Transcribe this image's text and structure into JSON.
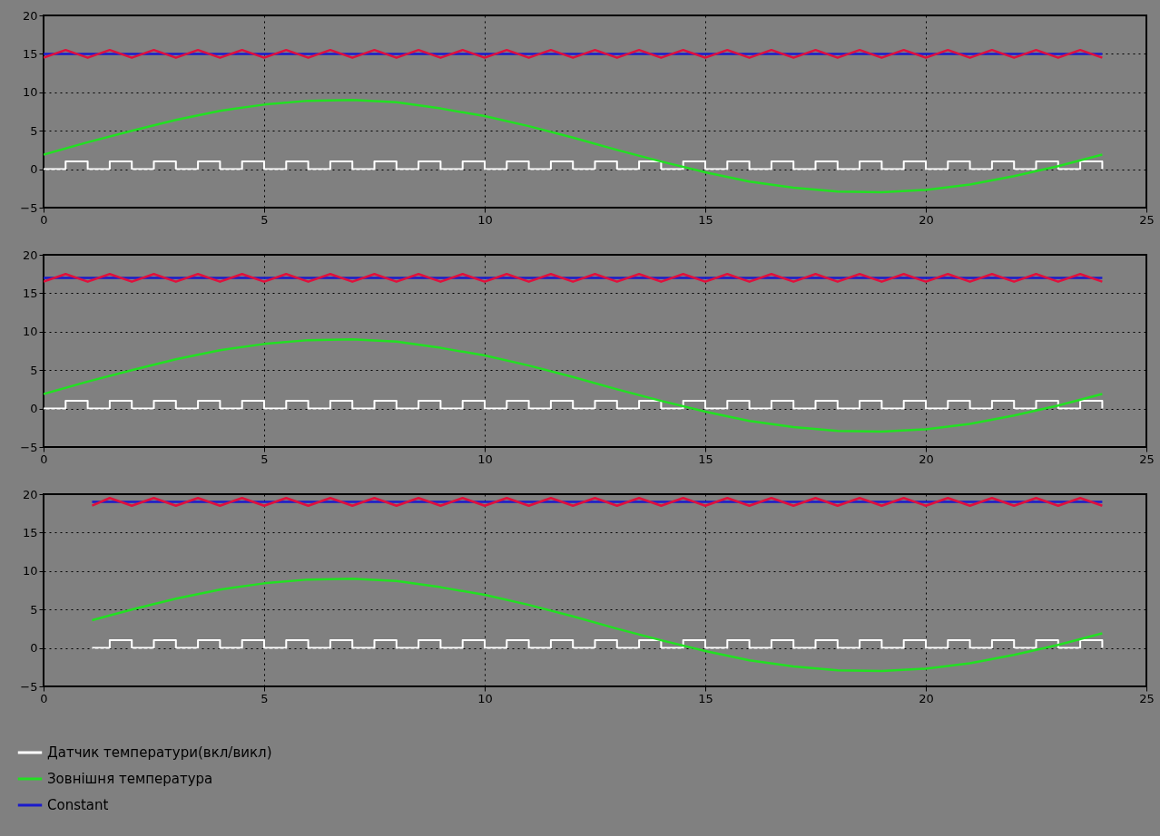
{
  "chart_data": [
    {
      "type": "line",
      "xlim": [
        0,
        25
      ],
      "ylim": [
        -5,
        20
      ],
      "xticks": [
        0,
        5,
        10,
        15,
        20,
        25
      ],
      "yticks": [
        -5,
        0,
        5,
        10,
        15,
        20
      ],
      "grid": true,
      "series": [
        {
          "color": "#ffffff",
          "type": "step",
          "x": [
            0,
            0.5,
            1,
            1.5,
            2,
            2.5,
            3,
            3.5,
            4,
            4.5,
            5,
            5.5,
            6,
            6.5,
            7,
            7.5,
            8,
            8.5,
            9,
            9.5,
            10,
            10.5,
            11,
            11.5,
            12,
            12.5,
            13,
            13.5,
            14,
            14.5,
            15,
            15.5,
            16,
            16.5,
            17,
            17.5,
            18,
            18.5,
            19,
            19.5,
            20,
            20.5,
            21,
            21.5,
            22,
            22.5,
            23,
            23.5,
            24
          ],
          "values": [
            0,
            1,
            0,
            1,
            0,
            1,
            0,
            1,
            0,
            1,
            0,
            1,
            0,
            1,
            0,
            1,
            0,
            1,
            0,
            1,
            0,
            1,
            0,
            1,
            0,
            1,
            0,
            1,
            0,
            1,
            0,
            1,
            0,
            1,
            0,
            1,
            0,
            1,
            0,
            1,
            0,
            1,
            0,
            1,
            0,
            1,
            0,
            1,
            0
          ]
        },
        {
          "color": "#22e022",
          "x": [
            0,
            1,
            2,
            3,
            4,
            5,
            6,
            7,
            8,
            9,
            10,
            11,
            12,
            13,
            14,
            15,
            16,
            17,
            18,
            19,
            20,
            21,
            22,
            23,
            24
          ],
          "values": [
            1.9,
            3.5,
            5.0,
            6.4,
            7.6,
            8.4,
            8.9,
            9.0,
            8.7,
            7.9,
            6.9,
            5.6,
            4.1,
            2.5,
            1.0,
            -0.4,
            -1.6,
            -2.4,
            -2.9,
            -3.0,
            -2.7,
            -2.0,
            -0.9,
            0.4,
            1.9
          ]
        },
        {
          "color": "#1a1acc",
          "x": [
            0,
            24
          ],
          "values": [
            15,
            15
          ]
        },
        {
          "color": "#e0103c",
          "x": [
            0,
            0.5,
            1,
            1.5,
            2,
            2.5,
            3,
            3.5,
            4,
            4.5,
            5,
            5.5,
            6,
            6.5,
            7,
            7.5,
            8,
            8.5,
            9,
            9.5,
            10,
            10.5,
            11,
            11.5,
            12,
            12.5,
            13,
            13.5,
            14,
            14.5,
            15,
            15.5,
            16,
            16.5,
            17,
            17.5,
            18,
            18.5,
            19,
            19.5,
            20,
            20.5,
            21,
            21.5,
            22,
            22.5,
            23,
            23.5,
            24
          ],
          "values": [
            14.5,
            15.5,
            14.5,
            15.5,
            14.5,
            15.5,
            14.5,
            15.5,
            14.5,
            15.5,
            14.5,
            15.5,
            14.5,
            15.5,
            14.5,
            15.5,
            14.5,
            15.5,
            14.5,
            15.5,
            14.5,
            15.5,
            14.5,
            15.5,
            14.5,
            15.5,
            14.5,
            15.5,
            14.5,
            15.5,
            14.5,
            15.5,
            14.5,
            15.5,
            14.5,
            15.5,
            14.5,
            15.5,
            14.5,
            15.5,
            14.5,
            15.5,
            14.5,
            15.5,
            14.5,
            15.5,
            14.5,
            15.5,
            14.5
          ]
        }
      ]
    },
    {
      "type": "line",
      "xlim": [
        0,
        25
      ],
      "ylim": [
        -5,
        20
      ],
      "xticks": [
        0,
        5,
        10,
        15,
        20,
        25
      ],
      "yticks": [
        -5,
        0,
        5,
        10,
        15,
        20
      ],
      "grid": true,
      "series": [
        {
          "color": "#ffffff",
          "type": "step",
          "x": [
            0,
            0.5,
            1,
            1.5,
            2,
            2.5,
            3,
            3.5,
            4,
            4.5,
            5,
            5.5,
            6,
            6.5,
            7,
            7.5,
            8,
            8.5,
            9,
            9.5,
            10,
            10.5,
            11,
            11.5,
            12,
            12.5,
            13,
            13.5,
            14,
            14.5,
            15,
            15.5,
            16,
            16.5,
            17,
            17.5,
            18,
            18.5,
            19,
            19.5,
            20,
            20.5,
            21,
            21.5,
            22,
            22.5,
            23,
            23.5,
            24
          ],
          "values": [
            0,
            1,
            0,
            1,
            0,
            1,
            0,
            1,
            0,
            1,
            0,
            1,
            0,
            1,
            0,
            1,
            0,
            1,
            0,
            1,
            0,
            1,
            0,
            1,
            0,
            1,
            0,
            1,
            0,
            1,
            0,
            1,
            0,
            1,
            0,
            1,
            0,
            1,
            0,
            1,
            0,
            1,
            0,
            1,
            0,
            1,
            0,
            1,
            0
          ]
        },
        {
          "color": "#22e022",
          "x": [
            0,
            1,
            2,
            3,
            4,
            5,
            6,
            7,
            8,
            9,
            10,
            11,
            12,
            13,
            14,
            15,
            16,
            17,
            18,
            19,
            20,
            21,
            22,
            23,
            24
          ],
          "values": [
            1.9,
            3.5,
            5.0,
            6.4,
            7.6,
            8.4,
            8.9,
            9.0,
            8.7,
            7.9,
            6.9,
            5.6,
            4.1,
            2.5,
            1.0,
            -0.4,
            -1.6,
            -2.4,
            -2.9,
            -3.0,
            -2.7,
            -2.0,
            -0.9,
            0.4,
            1.9
          ]
        },
        {
          "color": "#1a1acc",
          "x": [
            0,
            24
          ],
          "values": [
            17,
            17
          ]
        },
        {
          "color": "#e0103c",
          "x": [
            0,
            0.5,
            1,
            1.5,
            2,
            2.5,
            3,
            3.5,
            4,
            4.5,
            5,
            5.5,
            6,
            6.5,
            7,
            7.5,
            8,
            8.5,
            9,
            9.5,
            10,
            10.5,
            11,
            11.5,
            12,
            12.5,
            13,
            13.5,
            14,
            14.5,
            15,
            15.5,
            16,
            16.5,
            17,
            17.5,
            18,
            18.5,
            19,
            19.5,
            20,
            20.5,
            21,
            21.5,
            22,
            22.5,
            23,
            23.5,
            24
          ],
          "values": [
            16.5,
            17.5,
            16.5,
            17.5,
            16.5,
            17.5,
            16.5,
            17.5,
            16.5,
            17.5,
            16.5,
            17.5,
            16.5,
            17.5,
            16.5,
            17.5,
            16.5,
            17.5,
            16.5,
            17.5,
            16.5,
            17.5,
            16.5,
            17.5,
            16.5,
            17.5,
            16.5,
            17.5,
            16.5,
            17.5,
            16.5,
            17.5,
            16.5,
            17.5,
            16.5,
            17.5,
            16.5,
            17.5,
            16.5,
            17.5,
            16.5,
            17.5,
            16.5,
            17.5,
            16.5,
            17.5,
            16.5,
            17.5,
            16.5
          ]
        }
      ]
    },
    {
      "type": "line",
      "xlim": [
        0,
        25
      ],
      "ylim": [
        -5,
        20
      ],
      "xticks": [
        0,
        5,
        10,
        15,
        20,
        25
      ],
      "yticks": [
        -5,
        0,
        5,
        10,
        15,
        20
      ],
      "grid": true,
      "legend": "bottom left",
      "series": [
        {
          "name": "Датчик температури(вкл/викл)",
          "color": "#ffffff",
          "type": "step",
          "x": [
            1.1,
            1.5,
            2,
            2.5,
            3,
            3.5,
            4,
            4.5,
            5,
            5.5,
            6,
            6.5,
            7,
            7.5,
            8,
            8.5,
            9,
            9.5,
            10,
            10.5,
            11,
            11.5,
            12,
            12.5,
            13,
            13.5,
            14,
            14.5,
            15,
            15.5,
            16,
            16.5,
            17,
            17.5,
            18,
            18.5,
            19,
            19.5,
            20,
            20.5,
            21,
            21.5,
            22,
            22.5,
            23,
            23.5,
            24
          ],
          "values": [
            0,
            1,
            0,
            1,
            0,
            1,
            0,
            1,
            0,
            1,
            0,
            1,
            0,
            1,
            0,
            1,
            0,
            1,
            0,
            1,
            0,
            1,
            0,
            1,
            0,
            1,
            0,
            1,
            0,
            1,
            0,
            1,
            0,
            1,
            0,
            1,
            0,
            1,
            0,
            1,
            0,
            1,
            0,
            1,
            0,
            1,
            0
          ]
        },
        {
          "name": "Зовнішня температура",
          "color": "#22e022",
          "x": [
            1.1,
            2,
            3,
            4,
            5,
            6,
            7,
            8,
            9,
            10,
            11,
            12,
            13,
            14,
            15,
            16,
            17,
            18,
            19,
            20,
            21,
            22,
            23,
            24
          ],
          "values": [
            3.6,
            5.0,
            6.4,
            7.6,
            8.4,
            8.9,
            9.0,
            8.7,
            7.9,
            6.9,
            5.6,
            4.1,
            2.5,
            1.0,
            -0.4,
            -1.6,
            -2.4,
            -2.9,
            -3.0,
            -2.7,
            -2.0,
            -0.9,
            0.4,
            1.9
          ]
        },
        {
          "name": "Constant",
          "color": "#1a1acc",
          "x": [
            1.1,
            24
          ],
          "values": [
            19,
            19
          ]
        },
        {
          "color": "#e0103c",
          "x": [
            1.1,
            1.5,
            2,
            2.5,
            3,
            3.5,
            4,
            4.5,
            5,
            5.5,
            6,
            6.5,
            7,
            7.5,
            8,
            8.5,
            9,
            9.5,
            10,
            10.5,
            11,
            11.5,
            12,
            12.5,
            13,
            13.5,
            14,
            14.5,
            15,
            15.5,
            16,
            16.5,
            17,
            17.5,
            18,
            18.5,
            19,
            19.5,
            20,
            20.5,
            21,
            21.5,
            22,
            22.5,
            23,
            23.5,
            24
          ],
          "values": [
            18.5,
            19.5,
            18.5,
            19.5,
            18.5,
            19.5,
            18.5,
            19.5,
            18.5,
            19.5,
            18.5,
            19.5,
            18.5,
            19.5,
            18.5,
            19.5,
            18.5,
            19.5,
            18.5,
            19.5,
            18.5,
            19.5,
            18.5,
            19.5,
            18.5,
            19.5,
            18.5,
            19.5,
            18.5,
            19.5,
            18.5,
            19.5,
            18.5,
            19.5,
            18.5,
            19.5,
            18.5,
            19.5,
            18.5,
            19.5,
            18.5,
            19.5,
            18.5,
            19.5,
            18.5,
            19.5,
            18.5
          ]
        }
      ]
    }
  ]
}
